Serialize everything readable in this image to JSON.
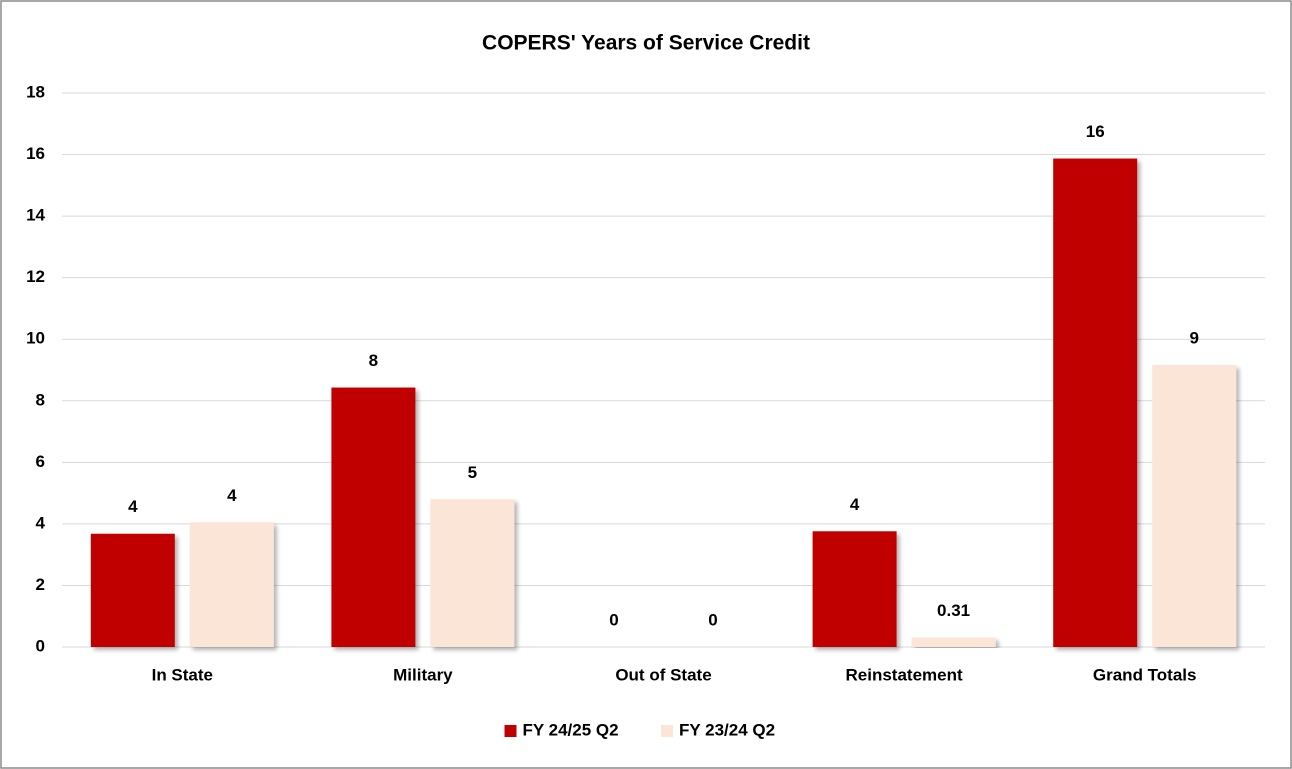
{
  "chart_data": {
    "type": "bar",
    "title": "COPERS' Years of Service Credit",
    "categories": [
      "In State",
      "Military",
      "Out of State",
      "Reinstatement",
      "Grand Totals"
    ],
    "series": [
      {
        "name": "FY 24/25 Q2",
        "color": "#c00000",
        "values": [
          3.68,
          8.43,
          0,
          3.76,
          15.87
        ],
        "value_labels": [
          "4",
          "8",
          "0",
          "4",
          "16"
        ]
      },
      {
        "name": "FY 23/24 Q2",
        "color": "#fbe5d6",
        "values": [
          4.05,
          4.8,
          0,
          0.31,
          9.16
        ],
        "value_labels": [
          "4",
          "5",
          "0",
          "0.31",
          "9"
        ]
      }
    ],
    "ylim": [
      0,
      18
    ],
    "yticks": [
      0,
      2,
      4,
      6,
      8,
      10,
      12,
      14,
      16,
      18
    ],
    "grid": true,
    "legend": "bottom"
  }
}
